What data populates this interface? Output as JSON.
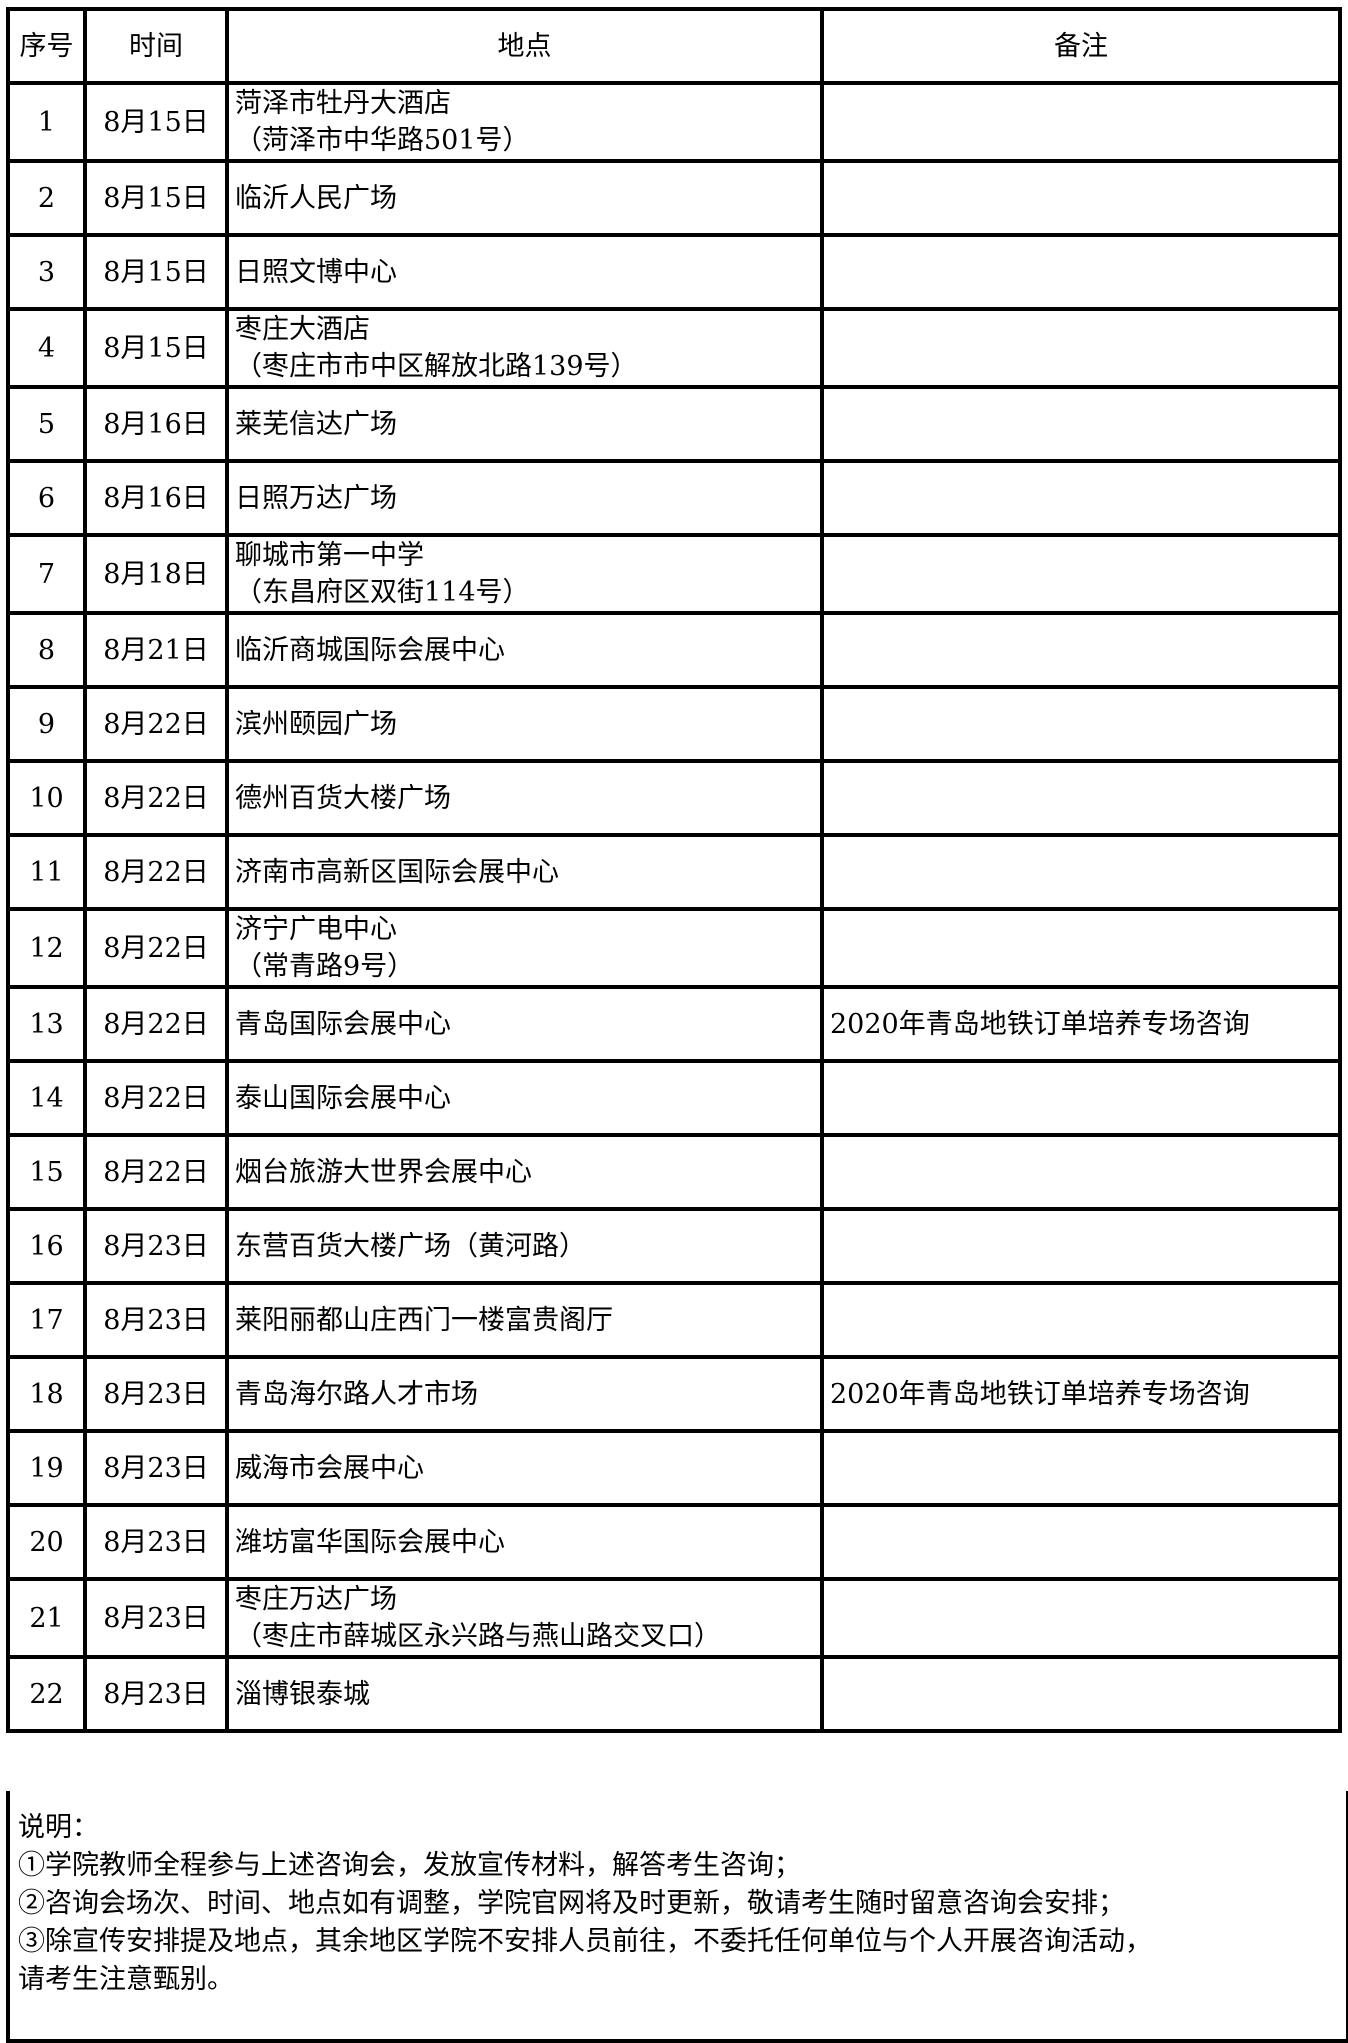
{
  "headers": {
    "no": "序号",
    "date": "时间",
    "place": "地点",
    "remark": "备注"
  },
  "rows": [
    {
      "no": "1",
      "date": "8月15日",
      "place": "菏泽市牡丹大酒店",
      "place2": "（菏泽市中华路501号）",
      "remark": ""
    },
    {
      "no": "2",
      "date": "8月15日",
      "place": "临沂人民广场",
      "place2": "",
      "remark": ""
    },
    {
      "no": "3",
      "date": "8月15日",
      "place": "日照文博中心",
      "place2": "",
      "remark": ""
    },
    {
      "no": "4",
      "date": "8月15日",
      "place": "枣庄大酒店",
      "place2": "（枣庄市市中区解放北路139号）",
      "remark": ""
    },
    {
      "no": "5",
      "date": "8月16日",
      "place": "莱芜信达广场",
      "place2": "",
      "remark": ""
    },
    {
      "no": "6",
      "date": "8月16日",
      "place": "日照万达广场",
      "place2": "",
      "remark": ""
    },
    {
      "no": "7",
      "date": "8月18日",
      "place": "聊城市第一中学",
      "place2": "（东昌府区双街114号）",
      "remark": ""
    },
    {
      "no": "8",
      "date": "8月21日",
      "place": "临沂商城国际会展中心",
      "place2": "",
      "remark": ""
    },
    {
      "no": "9",
      "date": "8月22日",
      "place": "滨州颐园广场",
      "place2": "",
      "remark": ""
    },
    {
      "no": "10",
      "date": "8月22日",
      "place": "德州百货大楼广场",
      "place2": "",
      "remark": ""
    },
    {
      "no": "11",
      "date": "8月22日",
      "place": "济南市高新区国际会展中心",
      "place2": "",
      "remark": ""
    },
    {
      "no": "12",
      "date": "8月22日",
      "place": "济宁广电中心",
      "place2": "（常青路9号）",
      "remark": ""
    },
    {
      "no": "13",
      "date": "8月22日",
      "place": "青岛国际会展中心",
      "place2": "",
      "remark": "2020年青岛地铁订单培养专场咨询"
    },
    {
      "no": "14",
      "date": "8月22日",
      "place": "泰山国际会展中心",
      "place2": "",
      "remark": ""
    },
    {
      "no": "15",
      "date": "8月22日",
      "place": "烟台旅游大世界会展中心",
      "place2": "",
      "remark": ""
    },
    {
      "no": "16",
      "date": "8月23日",
      "place": "东营百货大楼广场（黄河路）",
      "place2": "",
      "remark": ""
    },
    {
      "no": "17",
      "date": "8月23日",
      "place": "莱阳丽都山庄西门一楼富贵阁厅",
      "place2": "",
      "remark": ""
    },
    {
      "no": "18",
      "date": "8月23日",
      "place": "青岛海尔路人才市场",
      "place2": "",
      "remark": "2020年青岛地铁订单培养专场咨询"
    },
    {
      "no": "19",
      "date": "8月23日",
      "place": "威海市会展中心",
      "place2": "",
      "remark": ""
    },
    {
      "no": "20",
      "date": "8月23日",
      "place": "潍坊富华国际会展中心",
      "place2": "",
      "remark": ""
    },
    {
      "no": "21",
      "date": "8月23日",
      "place": "枣庄万达广场",
      "place2": "（枣庄市薛城区永兴路与燕山路交叉口）",
      "remark": ""
    },
    {
      "no": "22",
      "date": "8月23日",
      "place": "淄博银泰城",
      "place2": "",
      "remark": ""
    }
  ],
  "notes": {
    "title": "说明：",
    "lines": [
      "①学院教师全程参与上述咨询会，发放宣传材料，解答考生咨询；",
      "②咨询会场次、时间、地点如有调整，学院官网将及时更新，敬请考生随时留意咨询会安排；",
      "③除宣传安排提及地点，其余地区学院不安排人员前往，不委托任何单位与个人开展咨询活动，",
      "请考生注意甄别。"
    ]
  }
}
